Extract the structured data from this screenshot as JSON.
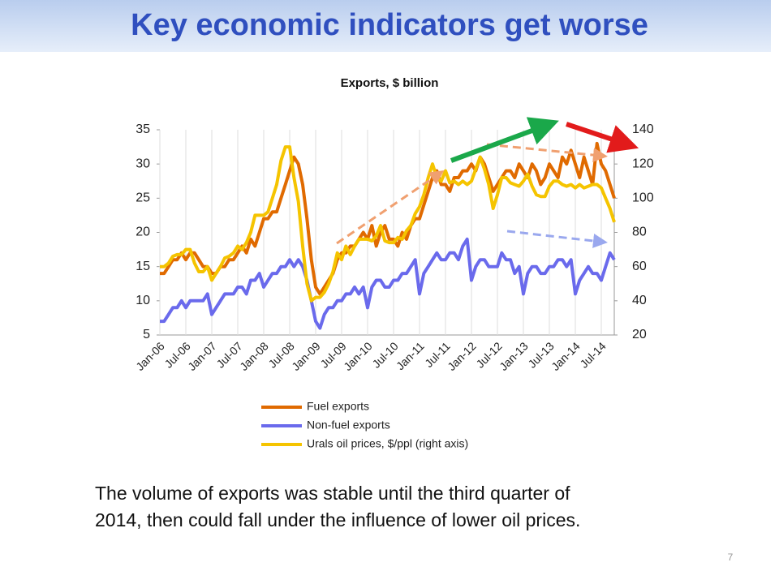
{
  "title": "Key economic indicators get worse",
  "caption": [
    "The volume of exports was stable until the third quarter of",
    "2014, then could fall under the influence of lower oil prices."
  ],
  "page_number": "7",
  "chart_data": {
    "type": "line",
    "title": "Exports, $ billion",
    "categories": [
      "Jan-06",
      null,
      null,
      null,
      null,
      null,
      "Jul-06",
      null,
      null,
      null,
      null,
      null,
      "Jan-07",
      null,
      null,
      null,
      null,
      null,
      "Jul-07",
      null,
      null,
      null,
      null,
      null,
      "Jan-08",
      null,
      null,
      null,
      null,
      null,
      "Jul-08",
      null,
      null,
      null,
      null,
      null,
      "Jan-09",
      null,
      null,
      null,
      null,
      null,
      "Jul-09",
      null,
      null,
      null,
      null,
      null,
      "Jan-10",
      null,
      null,
      null,
      null,
      null,
      "Jul-10",
      null,
      null,
      null,
      null,
      null,
      "Jan-11",
      null,
      null,
      null,
      null,
      null,
      "Jul-11",
      null,
      null,
      null,
      null,
      null,
      "Jan-12",
      null,
      null,
      null,
      null,
      null,
      "Jul-12",
      null,
      null,
      null,
      null,
      null,
      "Jan-13",
      null,
      null,
      null,
      null,
      null,
      "Jul-13",
      null,
      null,
      null,
      null,
      null,
      "Jan-14",
      null,
      null,
      null,
      null,
      null,
      "Jul-14",
      null,
      null,
      null
    ],
    "series": [
      {
        "name": "Fuel exports",
        "color": "#e06a00",
        "values": [
          14,
          14,
          15,
          16,
          16,
          17,
          16,
          17,
          17,
          16,
          15,
          15,
          14,
          14,
          15,
          15,
          16,
          16,
          17,
          18,
          17,
          19,
          18,
          20,
          22,
          22,
          23,
          23,
          25,
          27,
          29,
          31,
          30,
          27,
          22,
          16,
          12,
          11,
          12,
          13,
          14,
          16,
          17,
          17,
          18,
          18,
          19,
          20,
          19,
          21,
          18,
          20,
          21,
          19,
          19,
          18,
          20,
          19,
          21,
          22,
          22,
          24,
          26,
          28,
          29,
          27,
          27,
          26,
          28,
          28,
          29,
          29,
          30,
          29,
          31,
          30,
          28,
          26,
          27,
          28,
          29,
          29,
          28,
          30,
          29,
          28,
          30,
          29,
          27,
          28,
          30,
          29,
          28,
          31,
          30,
          32,
          30,
          28,
          31,
          29,
          27,
          33,
          30,
          29,
          27,
          25
        ]
      },
      {
        "name": "Non-fuel exports",
        "color": "#6a6aec",
        "values": [
          7,
          7,
          8,
          9,
          9,
          10,
          9,
          10,
          10,
          10,
          10,
          11,
          8,
          9,
          10,
          11,
          11,
          11,
          12,
          12,
          11,
          13,
          13,
          14,
          12,
          13,
          14,
          14,
          15,
          15,
          16,
          15,
          16,
          15,
          13,
          10,
          7,
          6,
          8,
          9,
          9,
          10,
          10,
          11,
          11,
          12,
          11,
          12,
          9,
          12,
          13,
          13,
          12,
          12,
          13,
          13,
          14,
          14,
          15,
          16,
          11,
          14,
          15,
          16,
          17,
          16,
          16,
          17,
          17,
          16,
          18,
          19,
          13,
          15,
          16,
          16,
          15,
          15,
          15,
          17,
          16,
          16,
          14,
          15,
          11,
          14,
          15,
          15,
          14,
          14,
          15,
          15,
          16,
          16,
          15,
          16,
          11,
          13,
          14,
          15,
          14,
          14,
          13,
          15,
          17,
          16
        ]
      },
      {
        "name": "Urals oil prices, $/ppl (right axis)",
        "color": "#f5c400",
        "axis": "y2",
        "values": [
          60,
          60,
          62,
          66,
          67,
          67,
          70,
          70,
          62,
          57,
          57,
          60,
          52,
          56,
          60,
          65,
          66,
          68,
          72,
          70,
          74,
          80,
          90,
          90,
          90,
          92,
          100,
          108,
          122,
          130,
          130,
          112,
          98,
          72,
          50,
          40,
          42,
          42,
          45,
          50,
          57,
          68,
          64,
          72,
          67,
          72,
          76,
          76,
          76,
          75,
          78,
          84,
          75,
          74,
          74,
          77,
          76,
          81,
          84,
          91,
          95,
          102,
          112,
          120,
          112,
          110,
          116,
          109,
          110,
          108,
          110,
          108,
          110,
          117,
          124,
          117,
          108,
          94,
          102,
          112,
          112,
          109,
          108,
          107,
          110,
          114,
          107,
          102,
          101,
          101,
          107,
          110,
          110,
          108,
          107,
          108,
          106,
          108,
          106,
          107,
          108,
          108,
          106,
          100,
          94,
          86
        ]
      }
    ],
    "ylim": [
      5,
      35
    ],
    "yticks": [
      5,
      10,
      15,
      20,
      25,
      30,
      35
    ],
    "y2lim": [
      20,
      140
    ],
    "y2ticks": [
      20,
      40,
      60,
      80,
      100,
      120,
      140
    ]
  }
}
